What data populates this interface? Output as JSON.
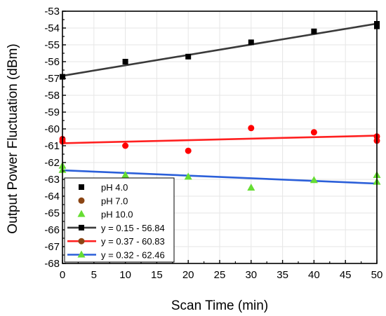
{
  "chart_data": {
    "type": "scatter",
    "title": "",
    "xlabel": "Scan Time (min)",
    "ylabel": "Output Power Fluctuation (dBm)",
    "xlim": [
      0,
      50
    ],
    "ylim": [
      -68,
      -53
    ],
    "xticks": [
      "0",
      "5",
      "10",
      "15",
      "20",
      "25",
      "30",
      "35",
      "40",
      "45",
      "50"
    ],
    "yticks": [
      "-53",
      "-54",
      "-55",
      "-56",
      "-57",
      "-58",
      "-59",
      "-60",
      "-61",
      "-62",
      "-63",
      "-64",
      "-65",
      "-66",
      "-67",
      "-68"
    ],
    "grid": true,
    "legend_position": "bottom-left",
    "series": [
      {
        "name": "pH 4.0",
        "marker": "square",
        "color": "#000000",
        "points": [
          [
            0,
            -56.9
          ],
          [
            10,
            -56.0
          ],
          [
            20,
            -55.7
          ],
          [
            30,
            -54.85
          ],
          [
            40,
            -54.2
          ],
          [
            50,
            -53.75
          ],
          [
            50,
            -53.9
          ]
        ]
      },
      {
        "name": "pH 7.0",
        "marker": "circle",
        "color": "#ff0000",
        "points": [
          [
            0,
            -60.6
          ],
          [
            0,
            -60.75
          ],
          [
            10,
            -61.0
          ],
          [
            20,
            -61.3
          ],
          [
            30,
            -59.95
          ],
          [
            40,
            -60.2
          ],
          [
            50,
            -60.45
          ],
          [
            50,
            -60.7
          ]
        ]
      },
      {
        "name": "pH 10.0",
        "marker": "triangle",
        "color": "#66dd33",
        "points": [
          [
            0,
            -62.2
          ],
          [
            0,
            -62.45
          ],
          [
            10,
            -62.75
          ],
          [
            20,
            -62.85
          ],
          [
            30,
            -63.5
          ],
          [
            40,
            -63.05
          ],
          [
            50,
            -63.15
          ],
          [
            50,
            -62.75
          ]
        ]
      }
    ],
    "fits": [
      {
        "name": "y = 0.15 - 56.84",
        "color": "#3a3a3a",
        "marker": "square",
        "x": [
          0,
          50
        ],
        "y": [
          -56.84,
          -53.74
        ]
      },
      {
        "name": "y = 0.37 - 60.83",
        "color": "#ff2020",
        "marker": "circle",
        "x": [
          0,
          50
        ],
        "y": [
          -60.85,
          -60.4
        ]
      },
      {
        "name": "y = 0.32 - 62.46",
        "color": "#2b5fd9",
        "marker": "triangle",
        "x": [
          0,
          50
        ],
        "y": [
          -62.46,
          -63.25
        ]
      }
    ],
    "legend_entries": [
      {
        "label": "pH 4.0",
        "marker": "square",
        "color": "#000000",
        "line_color": ""
      },
      {
        "label": "pH 7.0",
        "marker": "circle",
        "color": "#8b4513",
        "line_color": ""
      },
      {
        "label": "pH 10.0",
        "marker": "triangle",
        "color": "#66dd33",
        "line_color": ""
      },
      {
        "label": "y = 0.15 - 56.84",
        "marker": "square",
        "color": "#000000",
        "line_color": "#3a3a3a"
      },
      {
        "label": "y = 0.37 - 60.83",
        "marker": "circle",
        "color": "#8b4513",
        "line_color": "#ff2020"
      },
      {
        "label": "y = 0.32 - 62.46",
        "marker": "triangle",
        "color": "#66dd33",
        "line_color": "#2b5fd9"
      }
    ]
  }
}
